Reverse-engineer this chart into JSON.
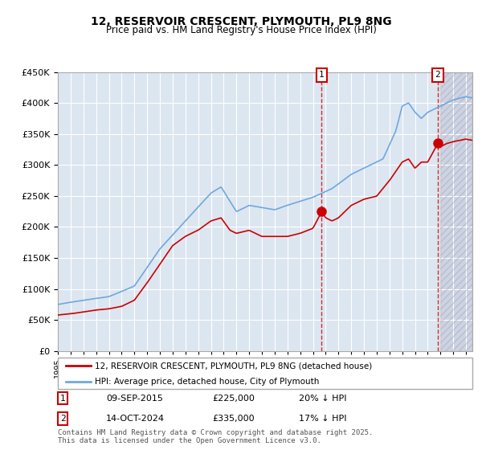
{
  "title": "12, RESERVOIR CRESCENT, PLYMOUTH, PL9 8NG",
  "subtitle": "Price paid vs. HM Land Registry's House Price Index (HPI)",
  "ylabel": "",
  "ylim": [
    0,
    450000
  ],
  "yticks": [
    0,
    50000,
    100000,
    150000,
    200000,
    250000,
    300000,
    350000,
    400000,
    450000
  ],
  "xlim_start": 1995.0,
  "xlim_end": 2027.5,
  "hpi_color": "#6fa8dc",
  "price_color": "#cc0000",
  "bg_color": "#dce6f1",
  "plot_bg": "#dce6f1",
  "grid_color": "#ffffff",
  "purchase1_date": 2015.69,
  "purchase1_price": 225000,
  "purchase1_label": "1",
  "purchase2_date": 2024.79,
  "purchase2_price": 335000,
  "purchase2_label": "2",
  "legend_line1": "12, RESERVOIR CRESCENT, PLYMOUTH, PL9 8NG (detached house)",
  "legend_line2": "HPI: Average price, detached house, City of Plymouth",
  "table_row1": [
    "1",
    "09-SEP-2015",
    "£225,000",
    "20% ↓ HPI"
  ],
  "table_row2": [
    "2",
    "14-OCT-2024",
    "£335,000",
    "17% ↓ HPI"
  ],
  "footnote": "Contains HM Land Registry data © Crown copyright and database right 2025.\nThis data is licensed under the Open Government Licence v3.0.",
  "hatch_color": "#c0c0c0",
  "future_shade_color": "#dce6f1"
}
